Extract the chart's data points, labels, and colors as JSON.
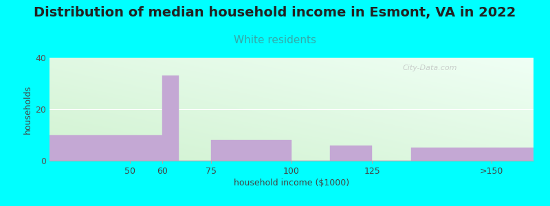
{
  "title": "Distribution of median household income in Esmont, VA in 2022",
  "subtitle": "White residents",
  "xlabel": "household income ($1000)",
  "ylabel": "households",
  "background_color": "#00FFFF",
  "bar_color": "#C4A8D4",
  "bins": [
    25,
    60,
    65,
    75,
    100,
    112,
    125,
    137,
    175
  ],
  "values": [
    10,
    33,
    0,
    8,
    0,
    6,
    0,
    5
  ],
  "xlim": [
    25,
    175
  ],
  "xtick_positions": [
    50,
    60,
    75,
    100,
    125
  ],
  "xtick_labels": [
    "50",
    "60",
    "75",
    "100",
    "125"
  ],
  "xtick_extra_pos": 162,
  "xtick_extra_label": ">150",
  "ylim": [
    0,
    40
  ],
  "yticks": [
    0,
    20,
    40
  ],
  "title_fontsize": 14,
  "subtitle_fontsize": 11,
  "subtitle_color": "#33AAAA",
  "axis_label_fontsize": 9,
  "watermark": "City-Data.com",
  "grad_topleft": [
    0.82,
    0.95,
    0.82
  ],
  "grad_botright": [
    0.94,
    1.0,
    0.96
  ]
}
